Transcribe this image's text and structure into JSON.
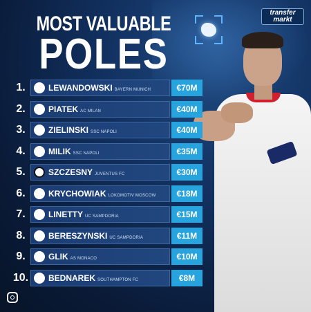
{
  "header": {
    "title_line1": "MOST VALUABLE",
    "title_line2": "POLES"
  },
  "logo": {
    "line1": "transfer",
    "line2": "markt"
  },
  "rows": [
    {
      "rank": "1.",
      "name": "LEWANDOWSKI",
      "club": "BAYERN MUNICH",
      "value": "€70M",
      "crest": "bayern-crest-icon"
    },
    {
      "rank": "2.",
      "name": "PIATEK",
      "club": "AC MILAN",
      "value": "€40M",
      "crest": "milan-crest-icon"
    },
    {
      "rank": "3.",
      "name": "ZIELINSKI",
      "club": "SSC NAPOLI",
      "value": "€40M",
      "crest": "napoli-crest-icon"
    },
    {
      "rank": "4.",
      "name": "MILIK",
      "club": "SSC NAPOLI",
      "value": "€35M",
      "crest": "napoli-crest-icon"
    },
    {
      "rank": "5.",
      "name": "SZCZESNY",
      "club": "JUVENTUS FC",
      "value": "€30M",
      "crest": "juventus-crest-icon"
    },
    {
      "rank": "6.",
      "name": "KRYCHOWIAK",
      "club": "LOKOMOTIV MOSCOW",
      "value": "€18M",
      "crest": "lokomotiv-crest-icon"
    },
    {
      "rank": "7.",
      "name": "LINETTY",
      "club": "UC SAMPDORIA",
      "value": "€15M",
      "crest": "sampdoria-crest-icon"
    },
    {
      "rank": "8.",
      "name": "BERESZYNSKI",
      "club": "UC SAMPDORIA",
      "value": "€11M",
      "crest": "sampdoria-crest-icon"
    },
    {
      "rank": "9.",
      "name": "GLIK",
      "club": "AS MONACO",
      "value": "€10M",
      "crest": "monaco-crest-icon"
    },
    {
      "rank": "10.",
      "name": "BEDNAREK",
      "club": "SOUTHAMPTON FC",
      "value": "€8M",
      "crest": "southampton-crest-icon"
    }
  ],
  "colors": {
    "background": "#123262",
    "value_badge": "#27a3de",
    "row_bar": "#1b3c73"
  }
}
